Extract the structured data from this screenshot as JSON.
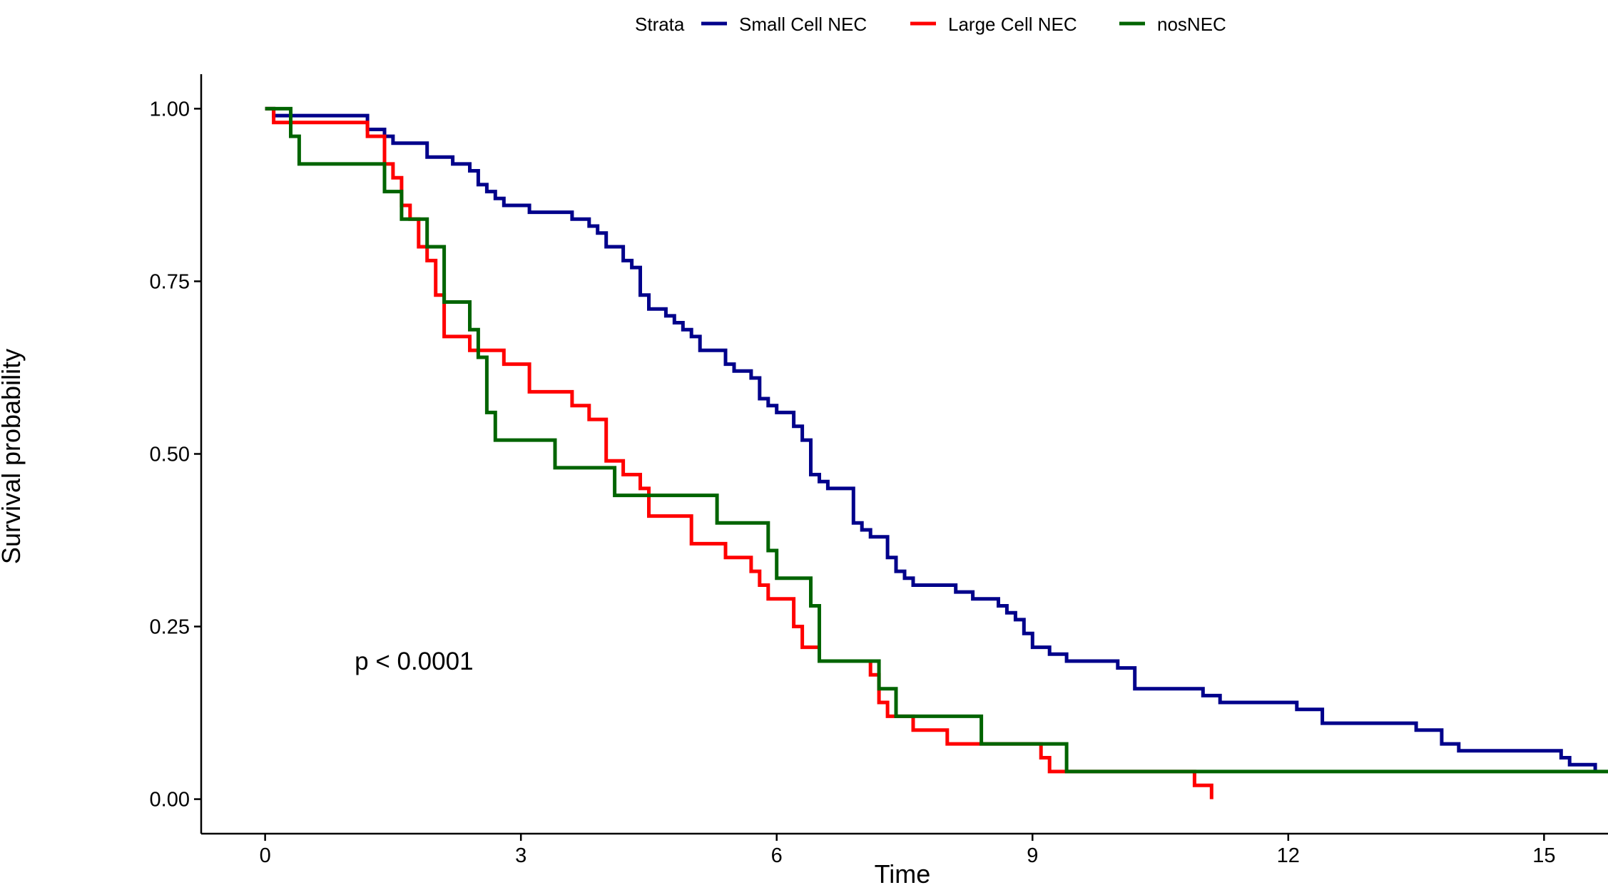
{
  "chart_data": {
    "type": "line",
    "step": true,
    "title": "",
    "xlabel": "Time",
    "ylabel": "Survival probability",
    "xlim": [
      -0.75,
      15.75
    ],
    "ylim": [
      -0.05,
      1.05
    ],
    "xticks": [
      0,
      3,
      6,
      9,
      12,
      15
    ],
    "xtick_labels": [
      "0",
      "3",
      "6",
      "9",
      "12",
      "15"
    ],
    "yticks": [
      0,
      0.25,
      0.5,
      0.75,
      1
    ],
    "ytick_labels": [
      "0.00",
      "0.25",
      "0.50",
      "0.75",
      "1.00"
    ],
    "grid": false,
    "legend": {
      "title": "Strata",
      "position": "top"
    },
    "annotation": "p < 0.0001",
    "annotation_at": [
      1.05,
      0.2
    ],
    "series": [
      {
        "name": "Small Cell NEC",
        "color": "#00008B",
        "points": [
          [
            0,
            1.0
          ],
          [
            0.1,
            0.99
          ],
          [
            1.2,
            0.97
          ],
          [
            1.4,
            0.96
          ],
          [
            1.5,
            0.95
          ],
          [
            1.9,
            0.93
          ],
          [
            2.2,
            0.92
          ],
          [
            2.4,
            0.91
          ],
          [
            2.5,
            0.89
          ],
          [
            2.6,
            0.88
          ],
          [
            2.7,
            0.87
          ],
          [
            2.8,
            0.86
          ],
          [
            3.1,
            0.85
          ],
          [
            3.6,
            0.84
          ],
          [
            3.8,
            0.83
          ],
          [
            3.9,
            0.82
          ],
          [
            4.0,
            0.8
          ],
          [
            4.2,
            0.78
          ],
          [
            4.3,
            0.77
          ],
          [
            4.4,
            0.73
          ],
          [
            4.5,
            0.71
          ],
          [
            4.7,
            0.7
          ],
          [
            4.8,
            0.69
          ],
          [
            4.9,
            0.68
          ],
          [
            5.0,
            0.67
          ],
          [
            5.1,
            0.65
          ],
          [
            5.4,
            0.63
          ],
          [
            5.5,
            0.62
          ],
          [
            5.7,
            0.61
          ],
          [
            5.8,
            0.58
          ],
          [
            5.9,
            0.57
          ],
          [
            6.0,
            0.56
          ],
          [
            6.2,
            0.54
          ],
          [
            6.3,
            0.52
          ],
          [
            6.4,
            0.47
          ],
          [
            6.5,
            0.46
          ],
          [
            6.6,
            0.45
          ],
          [
            6.9,
            0.4
          ],
          [
            7.0,
            0.39
          ],
          [
            7.1,
            0.38
          ],
          [
            7.3,
            0.35
          ],
          [
            7.4,
            0.33
          ],
          [
            7.5,
            0.32
          ],
          [
            7.6,
            0.31
          ],
          [
            8.1,
            0.3
          ],
          [
            8.3,
            0.29
          ],
          [
            8.6,
            0.28
          ],
          [
            8.7,
            0.27
          ],
          [
            8.8,
            0.26
          ],
          [
            8.9,
            0.24
          ],
          [
            9.0,
            0.22
          ],
          [
            9.2,
            0.21
          ],
          [
            9.4,
            0.2
          ],
          [
            10.0,
            0.19
          ],
          [
            10.2,
            0.16
          ],
          [
            11.0,
            0.15
          ],
          [
            11.2,
            0.14
          ],
          [
            12.1,
            0.13
          ],
          [
            12.4,
            0.11
          ],
          [
            13.5,
            0.1
          ],
          [
            13.8,
            0.08
          ],
          [
            14.0,
            0.07
          ],
          [
            15.2,
            0.06
          ],
          [
            15.3,
            0.05
          ],
          [
            15.6,
            0.04
          ]
        ],
        "end_x": 15.6
      },
      {
        "name": "Large Cell NEC",
        "color": "#FF0000",
        "points": [
          [
            0,
            1.0
          ],
          [
            0.1,
            0.98
          ],
          [
            1.2,
            0.96
          ],
          [
            1.4,
            0.92
          ],
          [
            1.5,
            0.9
          ],
          [
            1.6,
            0.86
          ],
          [
            1.7,
            0.84
          ],
          [
            1.8,
            0.8
          ],
          [
            1.9,
            0.78
          ],
          [
            2.0,
            0.73
          ],
          [
            2.1,
            0.67
          ],
          [
            2.4,
            0.65
          ],
          [
            2.8,
            0.63
          ],
          [
            3.1,
            0.59
          ],
          [
            3.6,
            0.57
          ],
          [
            3.8,
            0.55
          ],
          [
            4.0,
            0.49
          ],
          [
            4.2,
            0.47
          ],
          [
            4.4,
            0.45
          ],
          [
            4.5,
            0.41
          ],
          [
            5.0,
            0.37
          ],
          [
            5.4,
            0.35
          ],
          [
            5.7,
            0.33
          ],
          [
            5.8,
            0.31
          ],
          [
            5.9,
            0.29
          ],
          [
            6.2,
            0.25
          ],
          [
            6.3,
            0.22
          ],
          [
            6.5,
            0.2
          ],
          [
            7.1,
            0.18
          ],
          [
            7.2,
            0.14
          ],
          [
            7.3,
            0.12
          ],
          [
            7.6,
            0.1
          ],
          [
            8.0,
            0.08
          ],
          [
            9.1,
            0.06
          ],
          [
            9.2,
            0.04
          ],
          [
            10.9,
            0.02
          ],
          [
            11.1,
            0.0
          ]
        ],
        "end_x": 11.1
      },
      {
        "name": "nosNEC",
        "color": "#006400",
        "points": [
          [
            0,
            1.0
          ],
          [
            0.3,
            0.96
          ],
          [
            0.4,
            0.92
          ],
          [
            1.4,
            0.88
          ],
          [
            1.6,
            0.84
          ],
          [
            1.9,
            0.8
          ],
          [
            2.1,
            0.72
          ],
          [
            2.4,
            0.68
          ],
          [
            2.5,
            0.64
          ],
          [
            2.6,
            0.56
          ],
          [
            2.7,
            0.52
          ],
          [
            3.4,
            0.48
          ],
          [
            4.1,
            0.44
          ],
          [
            5.3,
            0.4
          ],
          [
            5.9,
            0.36
          ],
          [
            6.0,
            0.32
          ],
          [
            6.4,
            0.28
          ],
          [
            6.5,
            0.2
          ],
          [
            7.2,
            0.16
          ],
          [
            7.4,
            0.12
          ],
          [
            8.4,
            0.08
          ],
          [
            9.4,
            0.04
          ]
        ],
        "end_x": 15.75
      }
    ]
  }
}
